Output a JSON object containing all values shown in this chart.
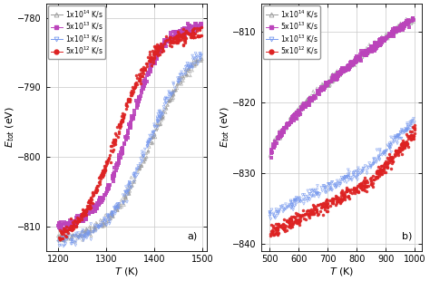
{
  "panel_a": {
    "xlim": [
      1175,
      1510
    ],
    "ylim": [
      -813.5,
      -778
    ],
    "xticks": [
      1200,
      1300,
      1400,
      1500
    ],
    "yticks": [
      -810,
      -800,
      -790,
      -780
    ],
    "xlabel": "$\\mathit{T}$ (K)",
    "ylabel": "$\\mathit{E}_{tot}$ (eV)",
    "label": "a)"
  },
  "panel_b": {
    "xlim": [
      470,
      1025
    ],
    "ylim": [
      -841,
      -806
    ],
    "xticks": [
      500,
      600,
      700,
      800,
      900,
      1000
    ],
    "yticks": [
      -840,
      -830,
      -820,
      -810
    ],
    "xlabel": "$\\mathit{T}$ (K)",
    "ylabel": "$\\mathit{E}_{tot}$ (eV)",
    "label": "b)"
  },
  "legend_labels": [
    "1x10$^{14}$ K/s",
    "5x10$^{13}$ K/s",
    "1x10$^{13}$ K/s",
    "5x10$^{12}$ K/s"
  ],
  "legend_colors": [
    "#999999",
    "#bb44bb",
    "#7799ee",
    "#dd2222"
  ],
  "legend_markers": [
    "^",
    "s",
    "v",
    "o"
  ],
  "legend_fillstyle": [
    "none",
    "full",
    "none",
    "full"
  ],
  "bg_color": "#ffffff",
  "grid_color": "#c8c8c8"
}
